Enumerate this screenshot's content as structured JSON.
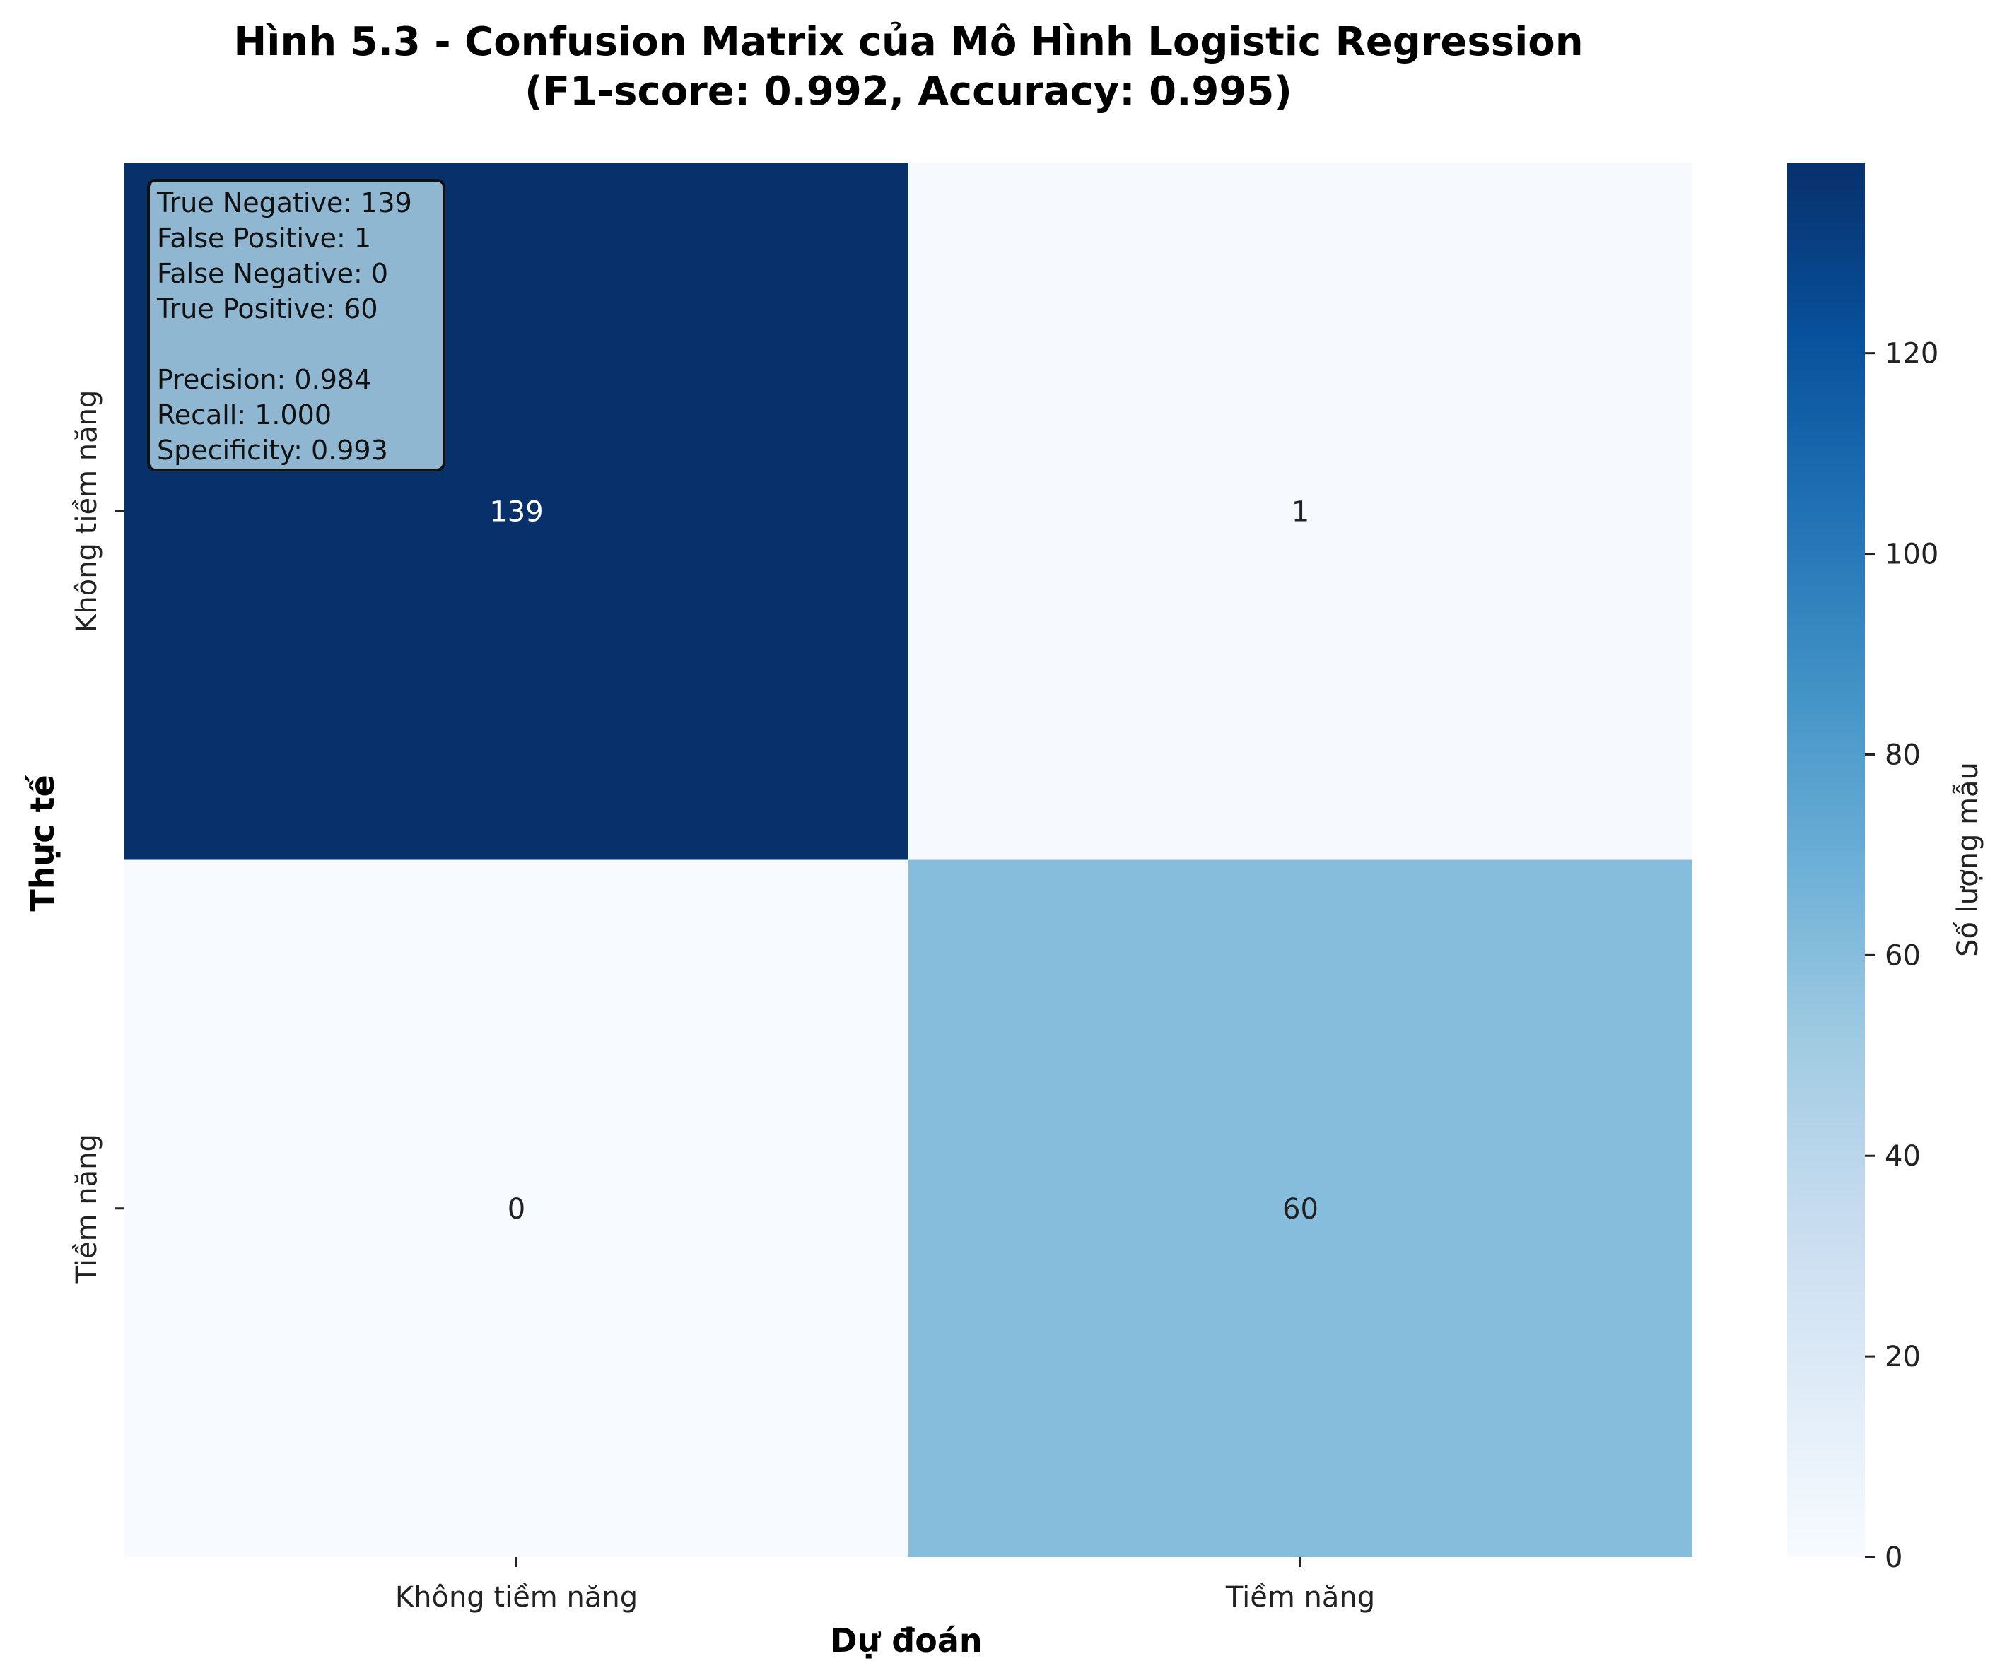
{
  "chart_data": {
    "type": "heatmap",
    "title_line1": "Hình 5.3 - Confusion Matrix của Mô Hình Logistic Regression",
    "title_line2": "(F1-score: 0.992, Accuracy: 0.995)",
    "xlabel": "Dự đoán",
    "ylabel": "Thực tế",
    "x_categories": [
      "Không tiềm năng",
      "Tiềm năng"
    ],
    "y_categories": [
      "Không tiềm năng",
      "Tiềm năng"
    ],
    "matrix": [
      [
        139,
        1
      ],
      [
        0,
        60
      ]
    ],
    "colorbar": {
      "label": "Số lượng mẫu",
      "min": 0,
      "max": 139,
      "ticks": [
        0,
        20,
        40,
        60,
        80,
        100,
        120
      ],
      "colormap": "Blues"
    },
    "stats_box": {
      "lines": [
        "True Negative: 139",
        "False Positive: 1",
        "False Negative: 0",
        "True Positive: 60",
        "",
        "Precision: 0.984",
        "Recall: 1.000",
        "Specificity: 0.993"
      ],
      "background": "#8fb7d1",
      "border": "#111111"
    }
  }
}
